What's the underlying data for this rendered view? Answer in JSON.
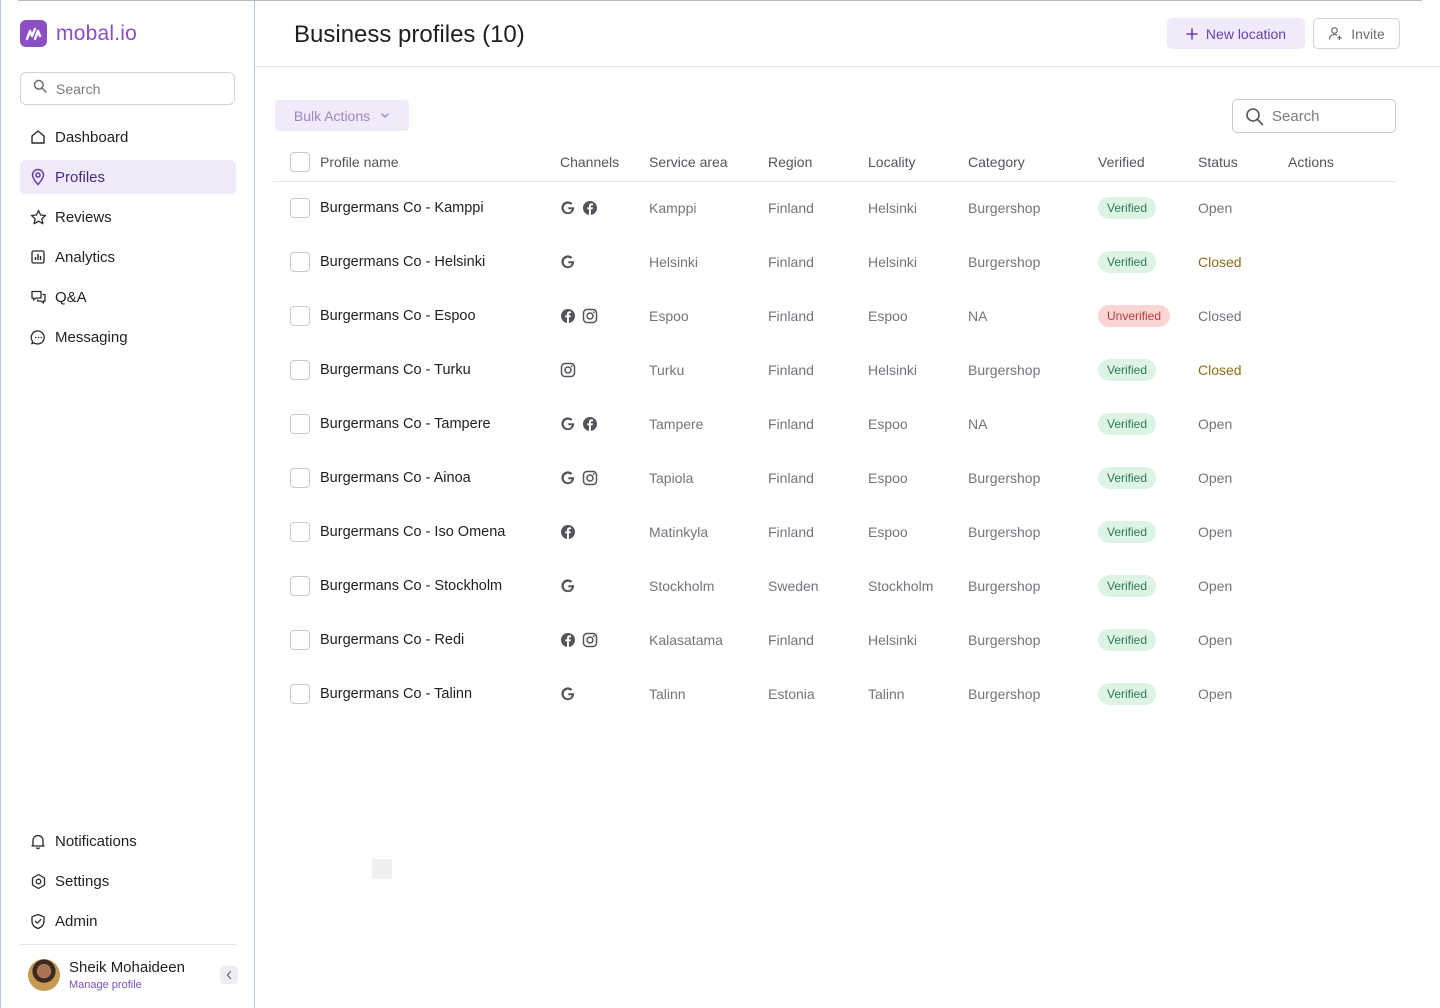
{
  "brand": {
    "name": "mobal.io",
    "color": "#8b4fc4"
  },
  "sidebar": {
    "search_placeholder": "Search",
    "nav": [
      {
        "label": "Dashboard",
        "icon": "home-icon",
        "active": false
      },
      {
        "label": "Profiles",
        "icon": "map-pin-icon",
        "active": true
      },
      {
        "label": "Reviews",
        "icon": "star-icon",
        "active": false
      },
      {
        "label": "Analytics",
        "icon": "chart-icon",
        "active": false
      },
      {
        "label": "Q&A",
        "icon": "chat-bubbles-icon",
        "active": false
      },
      {
        "label": "Messaging",
        "icon": "message-icon",
        "active": false
      }
    ],
    "bottom_nav": [
      {
        "label": "Notifications",
        "icon": "bell-icon"
      },
      {
        "label": "Settings",
        "icon": "settings-icon"
      },
      {
        "label": "Admin",
        "icon": "shield-icon"
      }
    ],
    "user": {
      "name": "Sheik Mohaideen",
      "manage_label": "Manage profile"
    }
  },
  "header": {
    "title": "Business profiles (10)",
    "new_location_label": "New location",
    "invite_label": "Invite"
  },
  "toolbar": {
    "bulk_actions_label": "Bulk Actions",
    "search_placeholder": "Search"
  },
  "table": {
    "columns": [
      "Profile name",
      "Channels",
      "Service area",
      "Region",
      "Locality",
      "Category",
      "Verified",
      "Status",
      "Actions"
    ],
    "rows": [
      {
        "name": "Burgermans Co - Kamppi",
        "channels": [
          "google",
          "facebook"
        ],
        "service_area": "Kamppi",
        "region": "Finland",
        "locality": "Helsinki",
        "category": "Burgershop",
        "verified": "Verified",
        "status": "Open"
      },
      {
        "name": "Burgermans Co - Helsinki",
        "channels": [
          "google"
        ],
        "service_area": "Helsinki",
        "region": "Finland",
        "locality": "Helsinki",
        "category": "Burgershop",
        "verified": "Verified",
        "status": "Closed"
      },
      {
        "name": "Burgermans Co - Espoo",
        "channels": [
          "facebook",
          "instagram"
        ],
        "service_area": "Espoo",
        "region": "Finland",
        "locality": "Espoo",
        "category": "NA",
        "verified": "Unverified",
        "status": "Closed"
      },
      {
        "name": "Burgermans Co - Turku",
        "channels": [
          "instagram"
        ],
        "service_area": "Turku",
        "region": "Finland",
        "locality": "Helsinki",
        "category": "Burgershop",
        "verified": "Verified",
        "status": "Closed"
      },
      {
        "name": "Burgermans Co - Tampere",
        "channels": [
          "google",
          "facebook"
        ],
        "service_area": "Tampere",
        "region": "Finland",
        "locality": "Espoo",
        "category": "NA",
        "verified": "Verified",
        "status": "Open"
      },
      {
        "name": "Burgermans Co - Ainoa",
        "channels": [
          "google",
          "instagram"
        ],
        "service_area": "Tapiola",
        "region": "Finland",
        "locality": "Espoo",
        "category": "Burgershop",
        "verified": "Verified",
        "status": "Open"
      },
      {
        "name": "Burgermans Co - Iso Omena",
        "channels": [
          "facebook"
        ],
        "service_area": "Matinkyla",
        "region": "Finland",
        "locality": "Espoo",
        "category": "Burgershop",
        "verified": "Verified",
        "status": "Open"
      },
      {
        "name": "Burgermans Co - Stockholm",
        "channels": [
          "google"
        ],
        "service_area": "Stockholm",
        "region": "Sweden",
        "locality": "Stockholm",
        "category": "Burgershop",
        "verified": "Verified",
        "status": "Open"
      },
      {
        "name": "Burgermans Co - Redi",
        "channels": [
          "facebook",
          "instagram"
        ],
        "service_area": "Kalasatama",
        "region": "Finland",
        "locality": "Helsinki",
        "category": "Burgershop",
        "verified": "Verified",
        "status": "Open"
      },
      {
        "name": "Burgermans Co - Talinn",
        "channels": [
          "google"
        ],
        "service_area": "Talinn",
        "region": "Estonia",
        "locality": "Talinn",
        "category": "Burgershop",
        "verified": "Verified",
        "status": "Open"
      }
    ],
    "closed_warning_rows": [
      1,
      3
    ]
  },
  "colors": {
    "accent": "#8b4fc4",
    "verified_bg": "#dcf3e6",
    "verified_fg": "#2d7a4f",
    "unverified_bg": "#fbd4d4",
    "unverified_fg": "#b23c3c",
    "closed_warning": "#8a6d16"
  }
}
